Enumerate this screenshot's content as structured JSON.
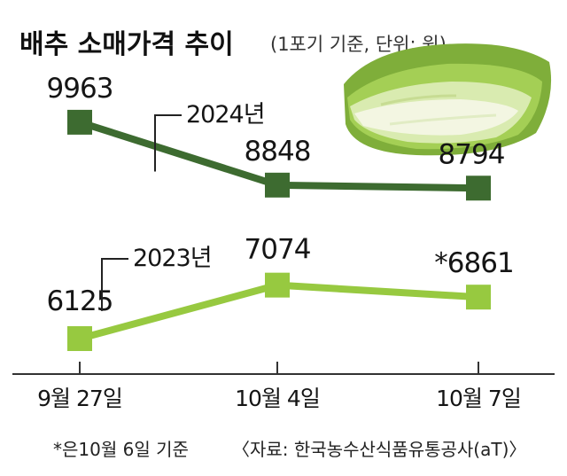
{
  "title": "배추 소매가격 추이",
  "subtitle": "(1포기 기준, 단위: 원)",
  "footnote": "*은10월 6일 기준",
  "source": "〈자료: 한국농수산식품유통공사(aT)〉",
  "colors": {
    "dark_green": "#3d6b30",
    "light_green": "#97c940",
    "axis": "#333333"
  },
  "image": {
    "name": "napa-cabbage-photo"
  },
  "chart_data": {
    "type": "line",
    "categories": [
      "9월 27일",
      "10월 4일",
      "10월 7일"
    ],
    "series": [
      {
        "name": "2024년",
        "values": [
          9963,
          8848,
          8794
        ],
        "labels": [
          "9963",
          "8848",
          "8794"
        ],
        "color": "#3d6b30"
      },
      {
        "name": "2023년",
        "values": [
          6125,
          7074,
          6861
        ],
        "labels": [
          "6125",
          "7074",
          "*6861"
        ],
        "color": "#97c940"
      }
    ],
    "title": "배추 소매가격 추이",
    "ylabel": "원",
    "grid": false,
    "legend": "labels next to lines"
  }
}
